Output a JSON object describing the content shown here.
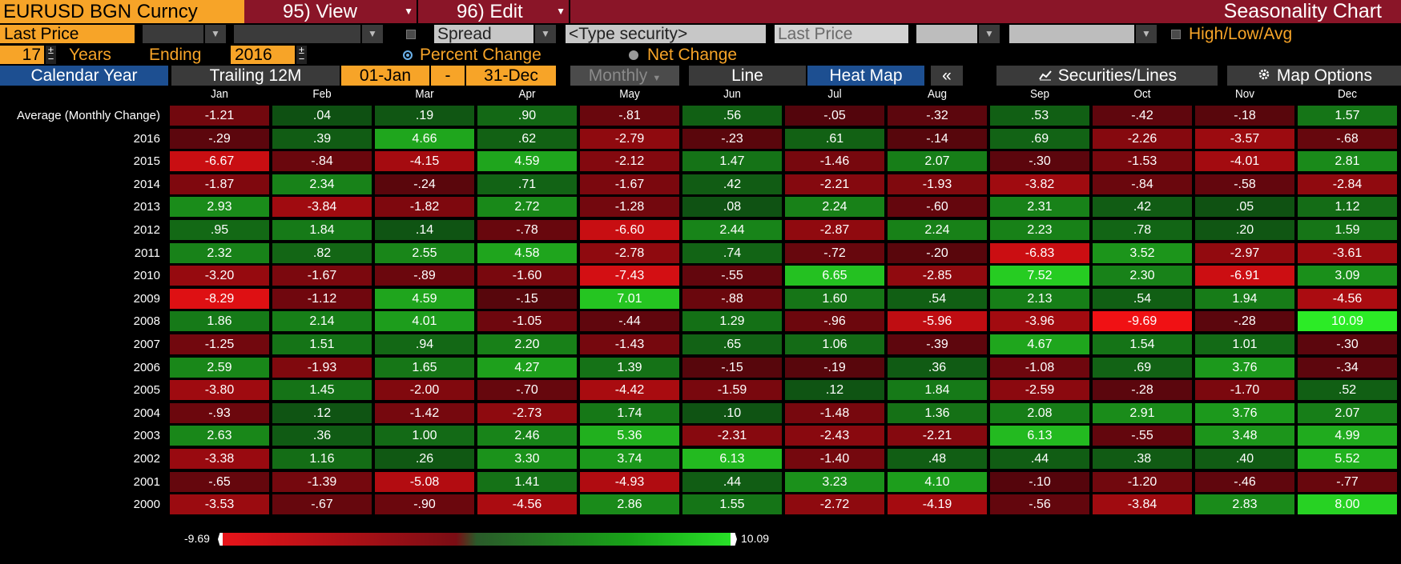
{
  "header": {
    "security": "EURUSD BGN Curncy",
    "view_label": "95) View",
    "edit_label": "96) Edit",
    "title": "Seasonality Chart"
  },
  "row2": {
    "field_left": "Last Price",
    "spread_label": "Spread",
    "security_placeholder": "<Type security>",
    "field_right": "Last Price",
    "hla_label": "High/Low/Avg"
  },
  "row3": {
    "years_count": "17",
    "years_label": "Years",
    "ending_label": "Ending",
    "ending_year": "2016",
    "percent_label": "Percent Change",
    "net_label": "Net Change"
  },
  "tabs": {
    "calendar_year": "Calendar Year",
    "trailing": "Trailing 12M",
    "start_date": "01-Jan",
    "dash": "-",
    "end_date": "31-Dec",
    "period": "Monthly",
    "line": "Line",
    "heat_map": "Heat Map",
    "collapse": "«",
    "securities_lines": "Securities/Lines",
    "map_options": "Map Options"
  },
  "colors": {
    "title_bar": "#8a1528",
    "accent_orange": "#f7a428",
    "tab_blue": "#1d4f91",
    "max_green": "#28e028",
    "min_red": "#e8141a"
  },
  "heatmap": {
    "months": [
      "Jan",
      "Feb",
      "Mar",
      "Apr",
      "May",
      "Jun",
      "Jul",
      "Aug",
      "Sep",
      "Oct",
      "Nov",
      "Dec"
    ],
    "min": -9.69,
    "max": 10.09,
    "rows": [
      {
        "label": "Average (Monthly Change)",
        "values": [
          -1.21,
          0.04,
          0.19,
          0.9,
          -0.81,
          0.56,
          -0.05,
          -0.32,
          0.53,
          -0.42,
          -0.18,
          1.57
        ]
      },
      {
        "label": "2016",
        "values": [
          -0.29,
          0.39,
          4.66,
          0.62,
          -2.79,
          -0.23,
          0.61,
          -0.14,
          0.69,
          -2.26,
          -3.57,
          -0.68
        ]
      },
      {
        "label": "2015",
        "values": [
          -6.67,
          -0.84,
          -4.15,
          4.59,
          -2.12,
          1.47,
          -1.46,
          2.07,
          -0.3,
          -1.53,
          -4.01,
          2.81
        ]
      },
      {
        "label": "2014",
        "values": [
          -1.87,
          2.34,
          -0.24,
          0.71,
          -1.67,
          0.42,
          -2.21,
          -1.93,
          -3.82,
          -0.84,
          -0.58,
          -2.84
        ]
      },
      {
        "label": "2013",
        "values": [
          2.93,
          -3.84,
          -1.82,
          2.72,
          -1.28,
          0.08,
          2.24,
          -0.6,
          2.31,
          0.42,
          0.05,
          1.12
        ]
      },
      {
        "label": "2012",
        "values": [
          0.95,
          1.84,
          0.14,
          -0.78,
          -6.6,
          2.44,
          -2.87,
          2.24,
          2.23,
          0.78,
          0.2,
          1.59
        ]
      },
      {
        "label": "2011",
        "values": [
          2.32,
          0.82,
          2.55,
          4.58,
          -2.78,
          0.74,
          -0.72,
          -0.2,
          -6.83,
          3.52,
          -2.97,
          -3.61
        ]
      },
      {
        "label": "2010",
        "values": [
          -3.2,
          -1.67,
          -0.89,
          -1.6,
          -7.43,
          -0.55,
          6.65,
          -2.85,
          7.52,
          2.3,
          -6.91,
          3.09
        ]
      },
      {
        "label": "2009",
        "values": [
          -8.29,
          -1.12,
          4.59,
          -0.15,
          7.01,
          -0.88,
          1.6,
          0.54,
          2.13,
          0.54,
          1.94,
          -4.56
        ]
      },
      {
        "label": "2008",
        "values": [
          1.86,
          2.14,
          4.01,
          -1.05,
          -0.44,
          1.29,
          -0.96,
          -5.96,
          -3.96,
          -9.69,
          -0.28,
          10.09
        ]
      },
      {
        "label": "2007",
        "values": [
          -1.25,
          1.51,
          0.94,
          2.2,
          -1.43,
          0.65,
          1.06,
          -0.39,
          4.67,
          1.54,
          1.01,
          -0.3
        ]
      },
      {
        "label": "2006",
        "values": [
          2.59,
          -1.93,
          1.65,
          4.27,
          1.39,
          -0.15,
          -0.19,
          0.36,
          -1.08,
          0.69,
          3.76,
          -0.34
        ]
      },
      {
        "label": "2005",
        "values": [
          -3.8,
          1.45,
          -2.0,
          -0.7,
          -4.42,
          -1.59,
          0.12,
          1.84,
          -2.59,
          -0.28,
          -1.7,
          0.52
        ]
      },
      {
        "label": "2004",
        "values": [
          -0.93,
          0.12,
          -1.42,
          -2.73,
          1.74,
          0.1,
          -1.48,
          1.36,
          2.08,
          2.91,
          3.76,
          2.07
        ]
      },
      {
        "label": "2003",
        "values": [
          2.63,
          0.36,
          1.0,
          2.46,
          5.36,
          -2.31,
          -2.43,
          -2.21,
          6.13,
          -0.55,
          3.48,
          4.99
        ]
      },
      {
        "label": "2002",
        "values": [
          -3.38,
          1.16,
          0.26,
          3.3,
          3.74,
          6.13,
          -1.4,
          0.48,
          0.44,
          0.38,
          0.4,
          5.52
        ]
      },
      {
        "label": "2001",
        "values": [
          -0.65,
          -1.39,
          -5.08,
          1.41,
          -4.93,
          0.44,
          3.23,
          4.1,
          -0.1,
          -1.2,
          -0.46,
          -0.77
        ]
      },
      {
        "label": "2000",
        "values": [
          -3.53,
          -0.67,
          -0.9,
          -4.56,
          2.86,
          1.55,
          -2.72,
          -4.19,
          -0.56,
          -3.84,
          2.83,
          8.0
        ]
      }
    ]
  },
  "legend": {
    "min_label": "-9.69",
    "max_label": "10.09"
  }
}
